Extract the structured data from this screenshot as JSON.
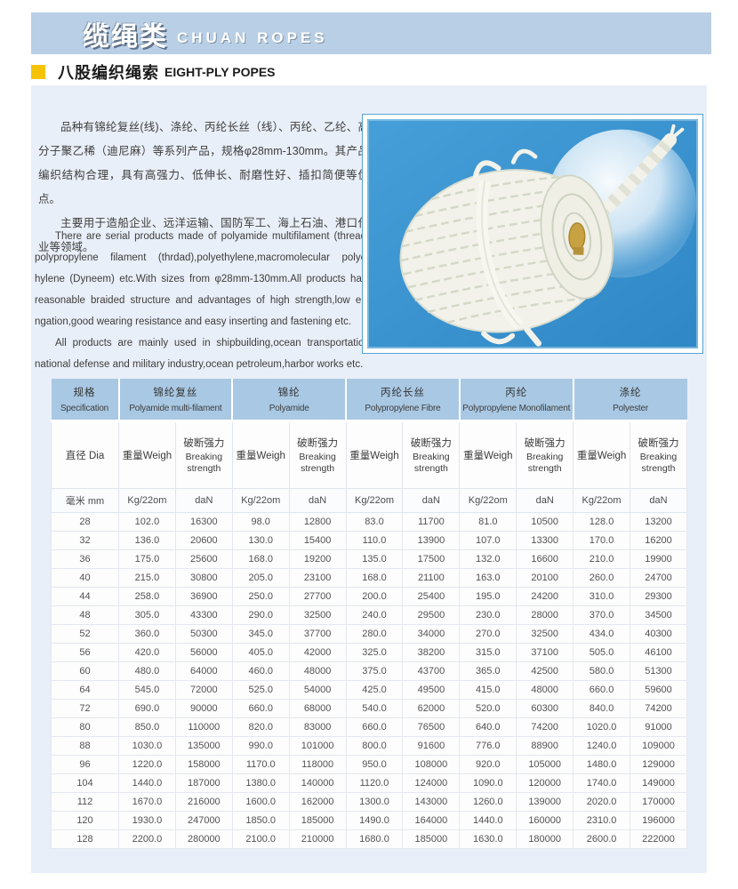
{
  "banner": {
    "title_zh": "缆绳类",
    "title_en": "CHUAN ROPES"
  },
  "subtitle": {
    "zh": "八股编织绳索",
    "en": "EIGHT-PLY POPES"
  },
  "intro": {
    "zh_paragraphs": [
      "品种有锦纶复丝(线)、涤纶、丙纶长丝（线）、丙纶、乙纶、高分子聚乙稀（迪尼麻）等系列产品，规格φ28mm-130mm。其产品编织结构合理，具有高强力、低伸长、耐磨性好、插扣简便等优点。",
      "主要用于造船企业、远洋运输、国防军工、海上石油、港口作业等领域。"
    ],
    "en_paragraphs": [
      "There are serial products made of polyamide multifilament (thread), polypropylene filament (thrdad),polyethylene,macromolecular polyet-hylene (Dyneem) etc.With sizes from φ28mm-130mm.All products have reasonable braided structure and advantages of high strength,low elo-ngation,good wearing resistance and easy  inserting and fastening etc.",
      "All products are mainly used in shipbuilding,ocean transportation, national defense and military industry,ocean petroleum,harbor works etc."
    ]
  },
  "figure": {
    "description": "coil of white eight-ply braided rope on blue background"
  },
  "colors": {
    "banner_blue": "#b9cfe5",
    "box_blue": "#e9eff8",
    "header_cell_blue": "#a9c8e3",
    "accent_yellow": "#f6c303",
    "photo_blue": "#3b96d2"
  },
  "table": {
    "groups": [
      {
        "zh": "规格",
        "en": "Specification",
        "span": 1
      },
      {
        "zh": "锦纶复丝",
        "en": "Polyamide multi-filament",
        "span": 2
      },
      {
        "zh": "锦纶",
        "en": "Polyamide",
        "span": 2
      },
      {
        "zh": "丙纶长丝",
        "en": "Polypropylene Fibre",
        "span": 2
      },
      {
        "zh": "丙纶",
        "en": "Polypropylene Monofilament",
        "span": 2
      },
      {
        "zh": "涤纶",
        "en": "Polyester",
        "span": 2
      }
    ],
    "sub_headers": {
      "dia": "直径 Dia",
      "weight": "重量Weigh",
      "breaking_zh": "破断强力",
      "breaking_en": "Breaking strength"
    },
    "units": {
      "dia": "毫米 mm",
      "weight": "Kg/22om",
      "breaking": "daN"
    },
    "rows": [
      [
        "28",
        "102.0",
        "16300",
        "98.0",
        "12800",
        "83.0",
        "11700",
        "81.0",
        "10500",
        "128.0",
        "13200"
      ],
      [
        "32",
        "136.0",
        "20600",
        "130.0",
        "15400",
        "110.0",
        "13900",
        "107.0",
        "13300",
        "170.0",
        "16200"
      ],
      [
        "36",
        "175.0",
        "25600",
        "168.0",
        "19200",
        "135.0",
        "17500",
        "132.0",
        "16600",
        "210.0",
        "19900"
      ],
      [
        "40",
        "215.0",
        "30800",
        "205.0",
        "23100",
        "168.0",
        "21100",
        "163.0",
        "20100",
        "260.0",
        "24700"
      ],
      [
        "44",
        "258.0",
        "36900",
        "250.0",
        "27700",
        "200.0",
        "25400",
        "195.0",
        "24200",
        "310.0",
        "29300"
      ],
      [
        "48",
        "305.0",
        "43300",
        "290.0",
        "32500",
        "240.0",
        "29500",
        "230.0",
        "28000",
        "370.0",
        "34500"
      ],
      [
        "52",
        "360.0",
        "50300",
        "345.0",
        "37700",
        "280.0",
        "34000",
        "270.0",
        "32500",
        "434.0",
        "40300"
      ],
      [
        "56",
        "420.0",
        "56000",
        "405.0",
        "42000",
        "325.0",
        "38200",
        "315.0",
        "37100",
        "505.0",
        "46100"
      ],
      [
        "60",
        "480.0",
        "64000",
        "460.0",
        "48000",
        "375.0",
        "43700",
        "365.0",
        "42500",
        "580.0",
        "51300"
      ],
      [
        "64",
        "545.0",
        "72000",
        "525.0",
        "54000",
        "425.0",
        "49500",
        "415.0",
        "48000",
        "660.0",
        "59600"
      ],
      [
        "72",
        "690.0",
        "90000",
        "660.0",
        "68000",
        "540.0",
        "62000",
        "520.0",
        "60300",
        "840.0",
        "74200"
      ],
      [
        "80",
        "850.0",
        "110000",
        "820.0",
        "83000",
        "660.0",
        "76500",
        "640.0",
        "74200",
        "1020.0",
        "91000"
      ],
      [
        "88",
        "1030.0",
        "135000",
        "990.0",
        "101000",
        "800.0",
        "91600",
        "776.0",
        "88900",
        "1240.0",
        "109000"
      ],
      [
        "96",
        "1220.0",
        "158000",
        "1170.0",
        "118000",
        "950.0",
        "108000",
        "920.0",
        "105000",
        "1480.0",
        "129000"
      ],
      [
        "104",
        "1440.0",
        "187000",
        "1380.0",
        "140000",
        "1120.0",
        "124000",
        "1090.0",
        "120000",
        "1740.0",
        "149000"
      ],
      [
        "112",
        "1670.0",
        "216000",
        "1600.0",
        "162000",
        "1300.0",
        "143000",
        "1260.0",
        "139000",
        "2020.0",
        "170000"
      ],
      [
        "120",
        "1930.0",
        "247000",
        "1850.0",
        "185000",
        "1490.0",
        "164000",
        "1440.0",
        "160000",
        "2310.0",
        "196000"
      ],
      [
        "128",
        "2200.0",
        "280000",
        "2100.0",
        "210000",
        "1680.0",
        "185000",
        "1630.0",
        "180000",
        "2600.0",
        "222000"
      ]
    ]
  }
}
